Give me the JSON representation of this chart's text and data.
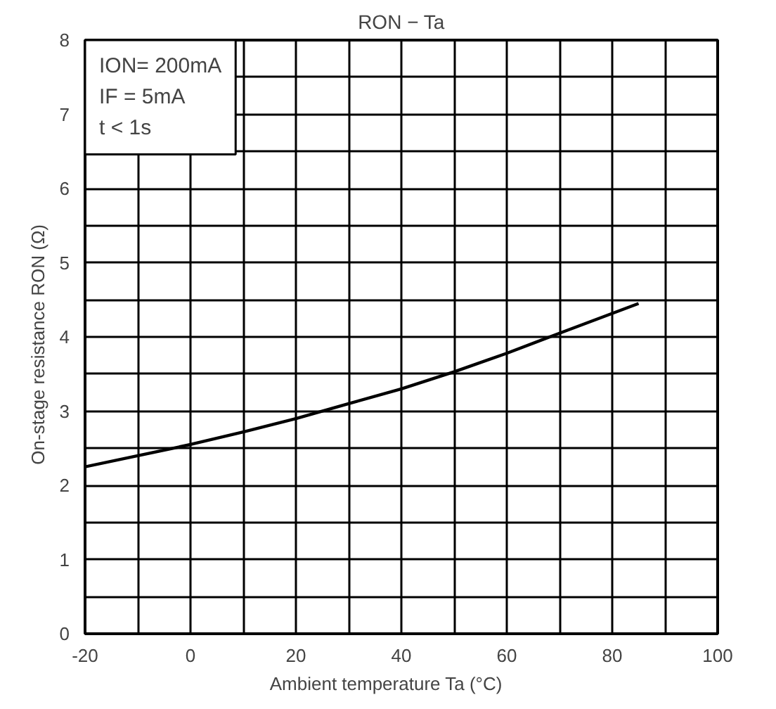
{
  "chart_data": {
    "type": "line",
    "title": "RON − Ta",
    "xlabel": "Ambient temperature    Ta    (°C)",
    "ylabel": "On-stage resistance    RON (Ω)",
    "annotations": [
      "ION= 200mA",
      "IF = 5mA",
      "t < 1s"
    ],
    "series": [
      {
        "color": "#000000",
        "x": [
          -20,
          -10,
          0,
          10,
          20,
          30,
          40,
          50,
          60,
          70,
          85
        ],
        "values": [
          2.25,
          2.4,
          2.55,
          2.72,
          2.9,
          3.1,
          3.3,
          3.53,
          3.78,
          4.05,
          4.45
        ]
      }
    ],
    "xlim": [
      -20,
      100
    ],
    "ylim": [
      0,
      8
    ],
    "xticks": [
      -20,
      {
        "value": -10,
        "label": null
      },
      0,
      {
        "value": 10,
        "label": null
      },
      20,
      {
        "value": 30,
        "label": null
      },
      40,
      {
        "value": 50,
        "label": null
      },
      60,
      {
        "value": 70,
        "label": null
      },
      80,
      {
        "value": 90,
        "label": null
      },
      100
    ],
    "yticks": [
      0,
      {
        "value": 0.5,
        "label": null
      },
      1,
      {
        "value": 1.5,
        "label": null
      },
      2,
      {
        "value": 2.5,
        "label": null
      },
      3,
      {
        "value": 3.5,
        "label": null
      },
      4,
      {
        "value": 4.5,
        "label": null
      },
      5,
      {
        "value": 5.5,
        "label": null
      },
      6,
      {
        "value": 6.5,
        "label": null
      },
      7,
      {
        "value": 7.5,
        "label": null
      },
      8
    ],
    "grid": true,
    "marker": "none",
    "line_style": "solid"
  }
}
